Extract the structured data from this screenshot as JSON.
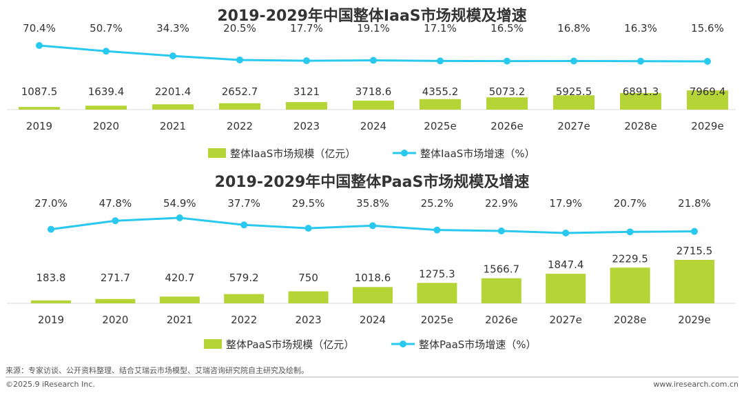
{
  "chart_data": [
    {
      "type": "bar",
      "title": "2019-2029年中国整体IaaS市场规模及增速",
      "categories": [
        "2019",
        "2020",
        "2021",
        "2022",
        "2023",
        "2024",
        "2025e",
        "2026e",
        "2027e",
        "2028e",
        "2029e"
      ],
      "series": [
        {
          "name": "整体IaaS市场规模（亿元）",
          "type": "bar",
          "color": "#b5d435",
          "values": [
            1087.5,
            1639.4,
            2201.4,
            2652.7,
            3121,
            3718.6,
            4355.2,
            5073.2,
            5925.5,
            6891.3,
            7969.4
          ],
          "labels": [
            "1087.5",
            "1639.4",
            "2201.4",
            "2652.7",
            "3121",
            "3718.6",
            "4355.2",
            "5073.2",
            "5925.5",
            "6891.3",
            "7969.4"
          ]
        },
        {
          "name": "整体IaaS市场增速（%）",
          "type": "line",
          "color": "#29c8ef",
          "values": [
            70.4,
            50.7,
            34.3,
            20.5,
            17.7,
            19.1,
            17.1,
            16.5,
            16.8,
            16.3,
            15.6
          ],
          "labels": [
            "70.4%",
            "50.7%",
            "34.3%",
            "20.5%",
            "17.7%",
            "19.1%",
            "17.1%",
            "16.5%",
            "16.8%",
            "16.3%",
            "15.6%"
          ]
        }
      ]
    },
    {
      "type": "bar",
      "title": "2019-2029年中国整体PaaS市场规模及增速",
      "categories": [
        "2019",
        "2020",
        "2021",
        "2022",
        "2023",
        "2024",
        "2025e",
        "2026e",
        "2027e",
        "2028e",
        "2029e"
      ],
      "series": [
        {
          "name": "整体PaaS市场规模（亿元）",
          "type": "bar",
          "color": "#b5d435",
          "values": [
            183.8,
            271.7,
            420.7,
            579.2,
            750,
            1018.6,
            1275.3,
            1566.7,
            1847.4,
            2229.5,
            2715.5
          ],
          "labels": [
            "183.8",
            "271.7",
            "420.7",
            "579.2",
            "750",
            "1018.6",
            "1275.3",
            "1566.7",
            "1847.4",
            "2229.5",
            "2715.5"
          ]
        },
        {
          "name": "整体PaaS市场增速（%）",
          "type": "line",
          "color": "#29c8ef",
          "values": [
            27.0,
            47.8,
            54.9,
            37.7,
            29.5,
            35.8,
            25.2,
            22.9,
            17.9,
            20.7,
            21.8
          ],
          "labels": [
            "27.0%",
            "47.8%",
            "54.9%",
            "37.7%",
            "29.5%",
            "35.8%",
            "25.2%",
            "22.9%",
            "17.9%",
            "20.7%",
            "21.8%"
          ]
        }
      ]
    }
  ],
  "footer": {
    "source": "来源：专家访谈、公开资料整理、结合艾瑞云市场模型、艾瑞咨询研究院自主研究及绘制。",
    "copyright": "©2025.9 iResearch Inc.",
    "website": "www.iresearch.com.cn"
  }
}
